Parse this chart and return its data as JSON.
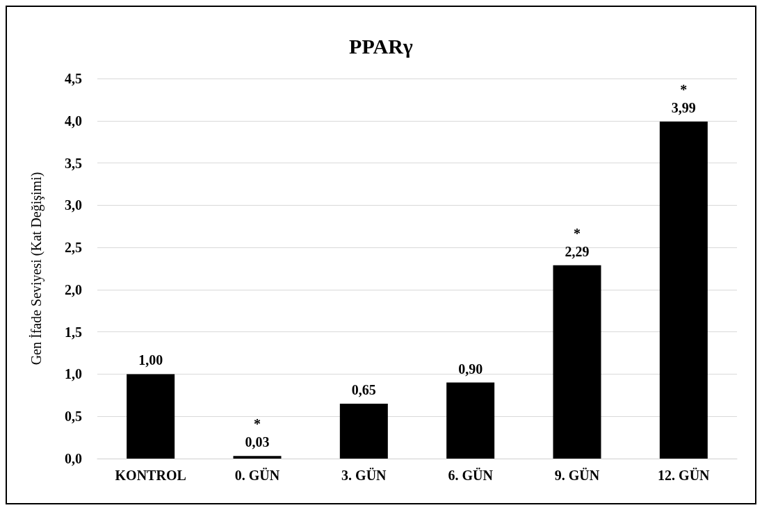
{
  "chart_data": {
    "type": "bar",
    "title": "PPARγ",
    "ylabel": "Gen İfade Seviyesi (Kat Değişimi)",
    "categories": [
      "KONTROL",
      "0. GÜN",
      "3. GÜN",
      "6. GÜN",
      "9. GÜN",
      "12. GÜN"
    ],
    "values": [
      1.0,
      0.03,
      0.65,
      0.9,
      2.29,
      3.99
    ],
    "color": "#000000",
    "value_labels": [
      "1,00",
      "0,03",
      "0,65",
      "0,90",
      "2,29",
      "3,99"
    ],
    "annotations": [
      {
        "text": "*",
        "x": "0. GÜN",
        "y": 0.03
      },
      {
        "text": "*",
        "x": "9. GÜN",
        "y": 2.29
      },
      {
        "text": "*",
        "x": "12. GÜN",
        "y": 3.99
      }
    ],
    "ylim": [
      0,
      4.5
    ],
    "yticks": [
      {
        "value": 0,
        "label": "0,0"
      },
      {
        "value": 0.5,
        "label": "0,5"
      },
      {
        "value": 1,
        "label": "1,0"
      },
      {
        "value": 1.5,
        "label": "1,5"
      },
      {
        "value": 2,
        "label": "2,0"
      },
      {
        "value": 2.5,
        "label": "2,5"
      },
      {
        "value": 3,
        "label": "3,0"
      },
      {
        "value": 3.5,
        "label": "3,5"
      },
      {
        "value": 4,
        "label": "4,0"
      },
      {
        "value": 4.5,
        "label": "4,5"
      }
    ],
    "grid": "y"
  }
}
